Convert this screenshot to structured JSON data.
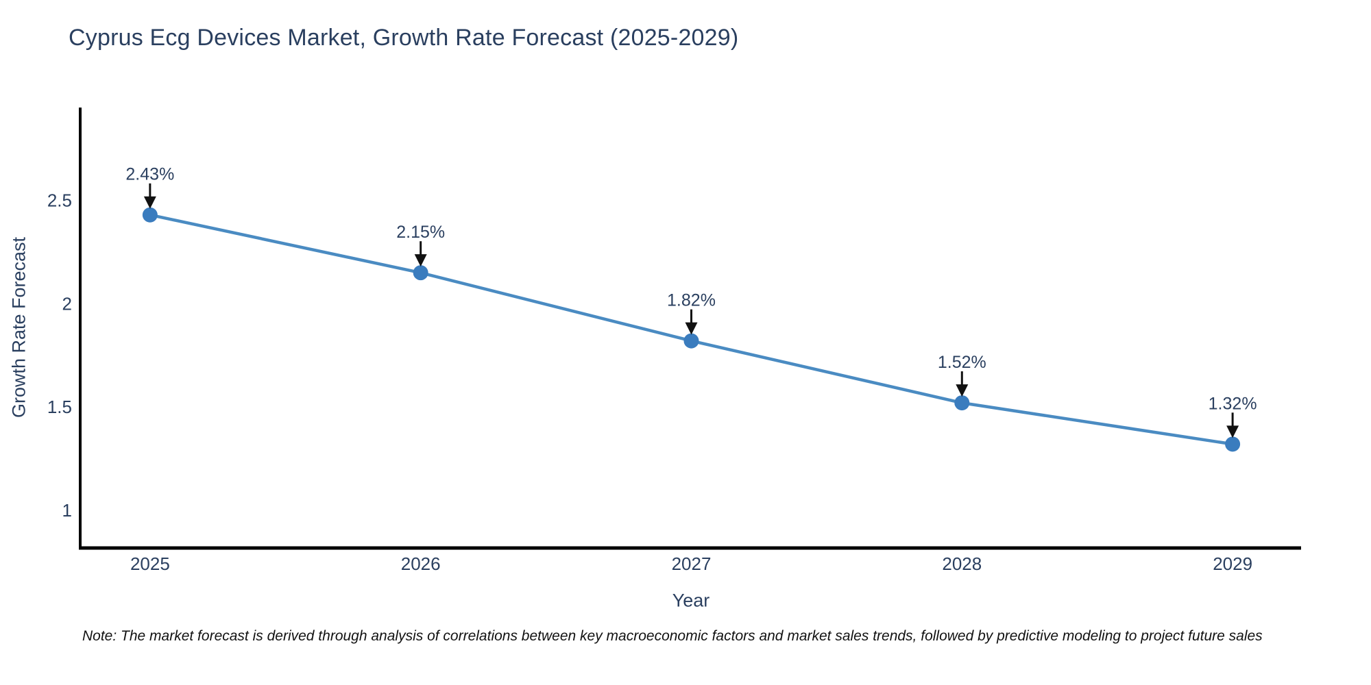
{
  "note": "Note: The market forecast is derived through analysis of correlations between key macroeconomic factors and market sales trends, followed by predictive modeling to project future sales",
  "chart_data": {
    "type": "line",
    "title": "Cyprus Ecg Devices Market, Growth Rate Forecast (2025-2029)",
    "xlabel": "Year",
    "ylabel": "Growth Rate Forecast",
    "x": [
      2025,
      2026,
      2027,
      2028,
      2029
    ],
    "x_ticks": [
      "2025",
      "2026",
      "2027",
      "2028",
      "2029"
    ],
    "values": [
      2.43,
      2.15,
      1.82,
      1.52,
      1.32
    ],
    "point_labels": [
      "2.43%",
      "2.15%",
      "1.82%",
      "1.52%",
      "1.32%"
    ],
    "y_ticks": [
      1,
      1.5,
      2,
      2.5
    ],
    "ylim": [
      0.817,
      2.94
    ],
    "xlim": [
      2024.742,
      2029.253
    ],
    "grid": false,
    "legend": false,
    "annotation_style": "down-arrow from each percent label to its data point",
    "colors": {
      "line": "#4a8bc2",
      "marker": "#3a7cbe",
      "arrow": "#111111",
      "axis": "#000000",
      "text": "#2a3f5f",
      "note_text": "#111111"
    }
  }
}
